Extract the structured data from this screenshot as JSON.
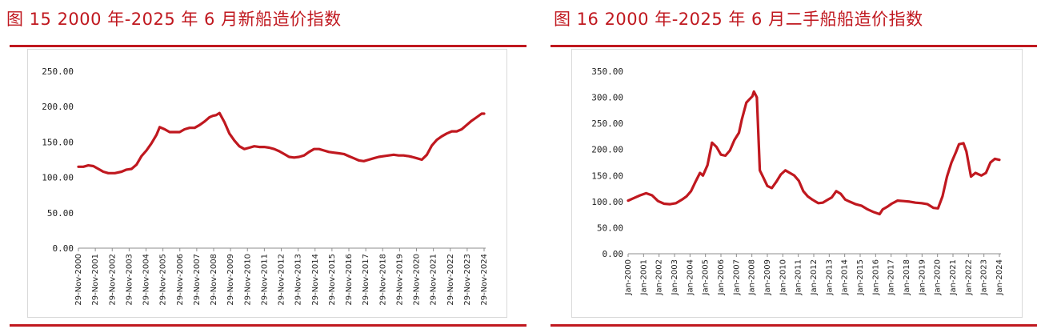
{
  "figures": [
    {
      "title": "图 15 2000 年-2025 年 6 月新船造价指数"
    },
    {
      "title": "图 16 2000 年-2025 年 6 月二手船船造价指数"
    }
  ],
  "colors": {
    "accent": "#c0181f",
    "series": "#c0181f"
  },
  "chart_data": [
    {
      "type": "line",
      "title": "图 15 2000 年-2025 年 6 月新船造价指数",
      "xlabel": "",
      "ylabel": "",
      "ylim": [
        0,
        250
      ],
      "yticks": [
        "0.00",
        "50.00",
        "100.00",
        "150.00",
        "200.00",
        "250.00"
      ],
      "xticks": [
        "29-Nov-2000",
        "29-Nov-2001",
        "29-Nov-2002",
        "29-Nov-2003",
        "29-Nov-2004",
        "29-Nov-2005",
        "29-Nov-2006",
        "29-Nov-2007",
        "29-Nov-2008",
        "29-Nov-2009",
        "29-Nov-2010",
        "29-Nov-2011",
        "29-Nov-2012",
        "29-Nov-2013",
        "29-Nov-2014",
        "29-Nov-2015",
        "29-Nov-2016",
        "29-Nov-2017",
        "29-Nov-2018",
        "29-Nov-2019",
        "29-Nov-2020",
        "29-Nov-2021",
        "29-Nov-2022",
        "29-Nov-2023",
        "29-Nov-2024"
      ],
      "grid": false,
      "legend": "none",
      "x": [
        2000.0,
        2000.3,
        2000.6,
        2000.9,
        2001.2,
        2001.5,
        2001.8,
        2002.2,
        2002.6,
        2002.9,
        2003.2,
        2003.5,
        2003.8,
        2004.1,
        2004.4,
        2004.7,
        2004.9,
        2005.2,
        2005.5,
        2005.8,
        2006.1,
        2006.4,
        2006.7,
        2007.0,
        2007.3,
        2007.6,
        2007.9,
        2008.1,
        2008.3,
        2008.5,
        2008.8,
        2009.1,
        2009.4,
        2009.7,
        2010.0,
        2010.3,
        2010.6,
        2010.9,
        2011.2,
        2011.5,
        2011.8,
        2012.1,
        2012.4,
        2012.7,
        2013.0,
        2013.3,
        2013.6,
        2013.9,
        2014.2,
        2014.5,
        2014.8,
        2015.1,
        2015.4,
        2015.7,
        2016.0,
        2016.3,
        2016.6,
        2016.9,
        2017.2,
        2017.5,
        2017.8,
        2018.1,
        2018.4,
        2018.7,
        2019.0,
        2019.3,
        2019.6,
        2019.9,
        2020.1,
        2020.4,
        2020.7,
        2021.0,
        2021.3,
        2021.6,
        2021.9,
        2022.2,
        2022.5,
        2022.8,
        2023.1,
        2023.4,
        2023.7,
        2024.0,
        2024.3,
        2024.45
      ],
      "values": [
        115,
        115,
        117,
        116,
        112,
        108,
        106,
        106,
        108,
        111,
        112,
        118,
        130,
        138,
        148,
        160,
        171,
        168,
        164,
        164,
        164,
        168,
        170,
        170,
        174,
        179,
        185,
        187,
        188,
        191,
        178,
        162,
        152,
        144,
        140,
        142,
        144,
        143,
        143,
        142,
        140,
        137,
        133,
        129,
        128,
        129,
        131,
        136,
        140,
        140,
        138,
        136,
        135,
        134,
        133,
        130,
        127,
        124,
        123,
        125,
        127,
        129,
        130,
        131,
        132,
        131,
        131,
        130,
        129,
        127,
        125,
        132,
        145,
        153,
        158,
        162,
        165,
        165,
        168,
        174,
        180,
        185,
        190,
        190
      ]
    },
    {
      "type": "line",
      "title": "图 16 2000 年-2025 年 6 月二手船船造价指数",
      "xlabel": "",
      "ylabel": "",
      "ylim": [
        0,
        350
      ],
      "yticks": [
        "0.00",
        "50.00",
        "100.00",
        "150.00",
        "200.00",
        "250.00",
        "300.00",
        "350.00"
      ],
      "xticks": [
        "Jan-2000",
        "Jan-2001",
        "Jan-2002",
        "Jan-2003",
        "Jan-2004",
        "Jan-2005",
        "Jan-2006",
        "Jan-2007",
        "Jan-2008",
        "Jan-2009",
        "Jan-2010",
        "Jan-2011",
        "Jan-2012",
        "Jan-2013",
        "Jan-2014",
        "Jan-2015",
        "Jan-2016",
        "Jan-2017",
        "Jan-2018",
        "Jan-2019",
        "Jan-2020",
        "Jan-2021",
        "Jan-2022",
        "Jan-2023",
        "Jan-2024"
      ],
      "grid": false,
      "legend": "none",
      "x": [
        2000.0,
        2000.4,
        2000.8,
        2001.2,
        2001.6,
        2002.0,
        2002.4,
        2002.8,
        2003.2,
        2003.6,
        2003.9,
        2004.2,
        2004.5,
        2004.8,
        2005.0,
        2005.3,
        2005.6,
        2005.9,
        2006.2,
        2006.5,
        2006.8,
        2007.1,
        2007.4,
        2007.6,
        2007.9,
        2008.1,
        2008.3,
        2008.4,
        2008.6,
        2008.8,
        2009.0,
        2009.3,
        2009.6,
        2009.9,
        2010.2,
        2010.5,
        2010.8,
        2011.1,
        2011.4,
        2011.7,
        2012.0,
        2012.3,
        2012.7,
        2013.0,
        2013.3,
        2013.6,
        2013.9,
        2014.2,
        2014.5,
        2014.8,
        2015.2,
        2015.6,
        2016.0,
        2016.4,
        2016.8,
        2017.0,
        2017.3,
        2017.6,
        2018.0,
        2018.4,
        2018.8,
        2019.2,
        2019.6,
        2020.0,
        2020.4,
        2020.7,
        2021.0,
        2021.3,
        2021.6,
        2021.9,
        2022.1,
        2022.4,
        2022.6,
        2022.9,
        2023.2,
        2023.6,
        2023.9,
        2024.2,
        2024.5,
        2024.8
      ],
      "values": [
        102,
        107,
        112,
        116,
        112,
        101,
        96,
        95,
        97,
        104,
        110,
        120,
        138,
        155,
        150,
        170,
        213,
        205,
        190,
        188,
        198,
        218,
        232,
        258,
        290,
        296,
        302,
        311,
        300,
        160,
        148,
        130,
        126,
        138,
        152,
        160,
        155,
        150,
        140,
        120,
        110,
        104,
        97,
        98,
        103,
        108,
        120,
        115,
        104,
        100,
        95,
        92,
        85,
        80,
        76,
        85,
        90,
        96,
        102,
        101,
        100,
        98,
        97,
        95,
        88,
        87,
        110,
        148,
        175,
        195,
        210,
        212,
        196,
        148,
        155,
        150,
        155,
        175,
        182,
        180
      ]
    }
  ]
}
